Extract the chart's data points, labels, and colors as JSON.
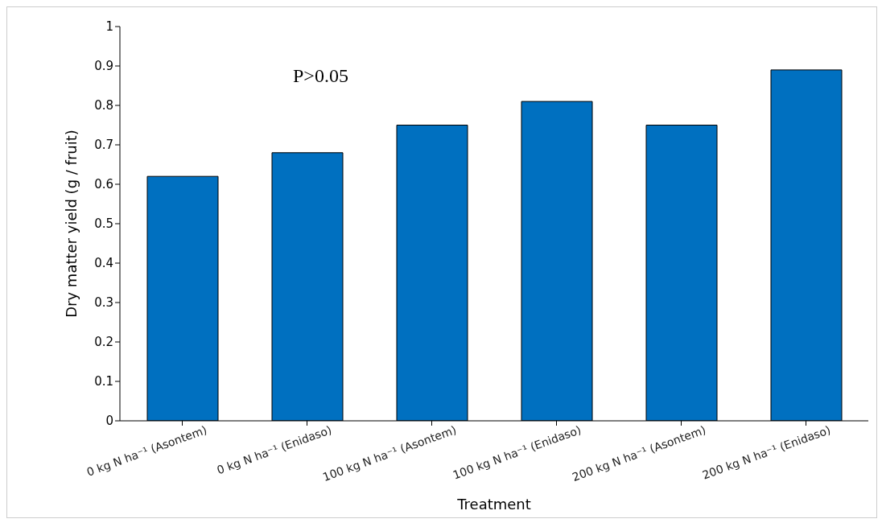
{
  "chart_data": {
    "type": "bar",
    "xlabel": "Treatment",
    "ylabel": "Dry matter yield (g / fruit)",
    "categories": [
      "0 kg N ha⁻¹ (Asontem)",
      "0 kg N ha⁻¹ (Enidaso)",
      "100 kg N ha⁻¹ (Asontem)",
      "100 kg N ha⁻¹ (Enidaso)",
      "200 kg N ha⁻¹ (Asontem)",
      "200 kg N ha⁻¹ (Enidaso)"
    ],
    "values": [
      0.62,
      0.68,
      0.75,
      0.81,
      0.75,
      0.89
    ],
    "color": "#0070c0",
    "ylim": [
      0,
      1
    ],
    "yticks": [
      0,
      0.1,
      0.2,
      0.3,
      0.4,
      0.5,
      0.6,
      0.7,
      0.8,
      0.9,
      1
    ],
    "grid": false,
    "legend": false,
    "annotations": [
      "P>0.05"
    ]
  }
}
